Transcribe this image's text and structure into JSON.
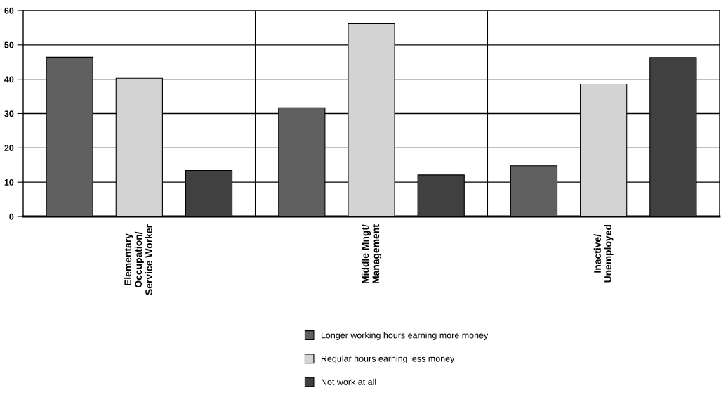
{
  "chart_data": {
    "type": "bar",
    "categories": [
      "Elementary\nOccupation/\nService Worker",
      "Middle Mngt/\nManagement",
      "Inactive/\nUnemployed"
    ],
    "series": [
      {
        "name": "Longer working hours earning more money",
        "color": "#606060",
        "values": [
          46.4,
          31.7,
          14.8
        ]
      },
      {
        "name": "Regular hours earning less money",
        "color": "#d3d3d3",
        "values": [
          40.3,
          56.2,
          38.6
        ]
      },
      {
        "name": "Not work at all",
        "color": "#404040",
        "values": [
          13.4,
          12.1,
          46.3
        ]
      }
    ],
    "ylim": [
      0,
      60
    ],
    "yticks": [
      0,
      10,
      20,
      30,
      40,
      50,
      60
    ],
    "grid": true,
    "legend": "bottom"
  }
}
